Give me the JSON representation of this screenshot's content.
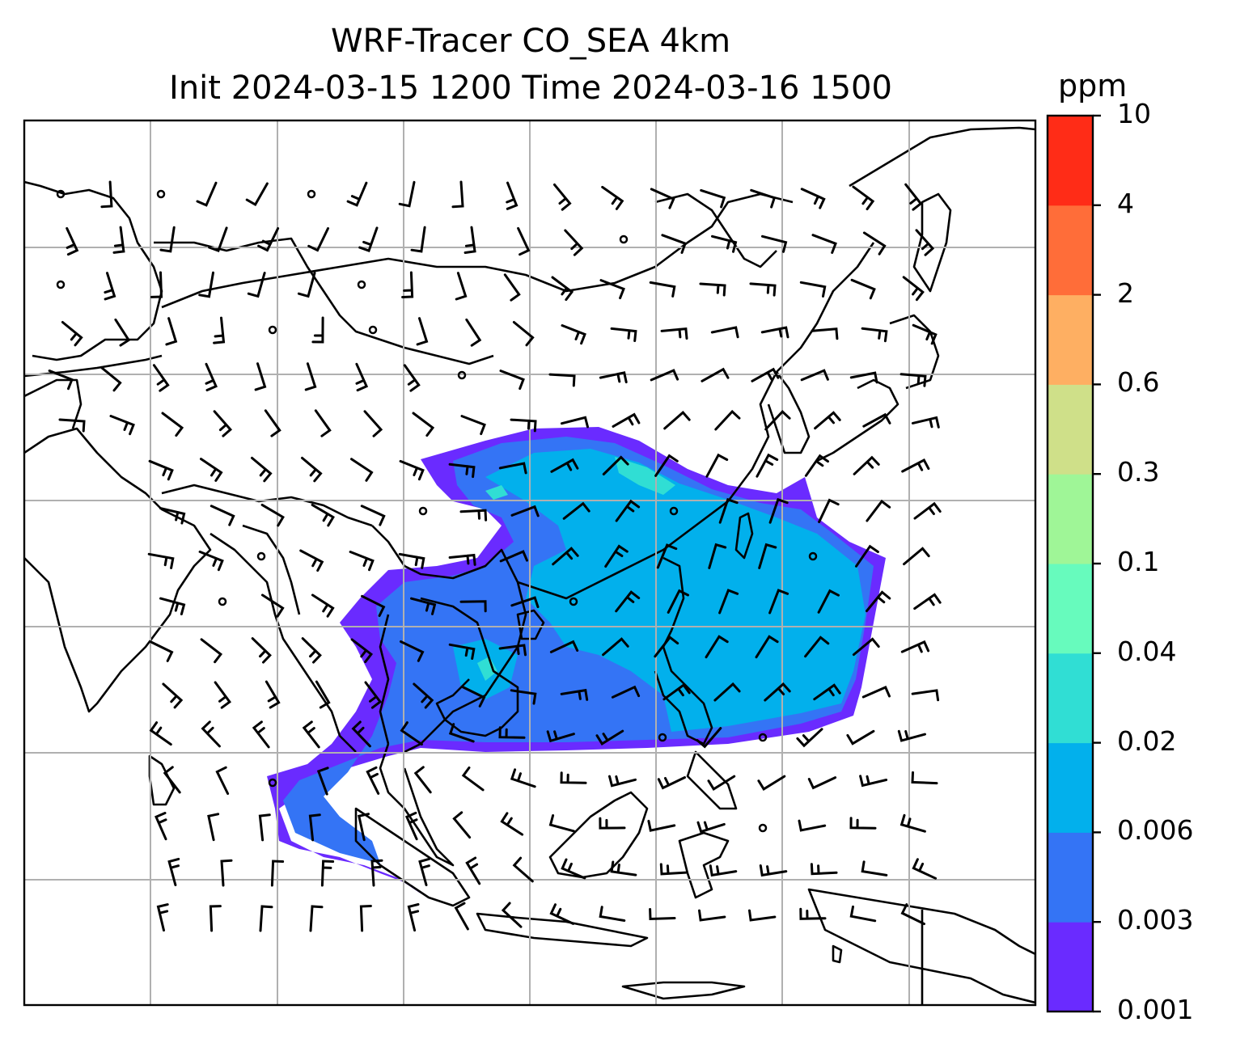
{
  "title": {
    "line1": "WRF-Tracer CO_SEA 4km",
    "line2": "Init 2024-03-15 1200 Time 2024-03-16 1500"
  },
  "colorbar": {
    "unit": "ppm",
    "levels": [
      "0.001",
      "0.003",
      "0.006",
      "0.02",
      "0.04",
      "0.1",
      "0.3",
      "0.6",
      "2",
      "4",
      "10"
    ],
    "colors": [
      "#6a2bff",
      "#3474f5",
      "#02b0ec",
      "#30ded4",
      "#67fbbd",
      "#9ff697",
      "#cfe089",
      "#feaf62",
      "#ff6d39",
      "#ff2c17"
    ]
  },
  "map": {
    "region": "Southeast Asia",
    "gridlines": true,
    "layers": [
      "coastlines",
      "country borders",
      "CO tracer concentration (filled contours)",
      "wind barbs"
    ],
    "plume_colors": [
      "#6a2bff",
      "#3474f5",
      "#02b0ec",
      "#30ded4"
    ]
  }
}
